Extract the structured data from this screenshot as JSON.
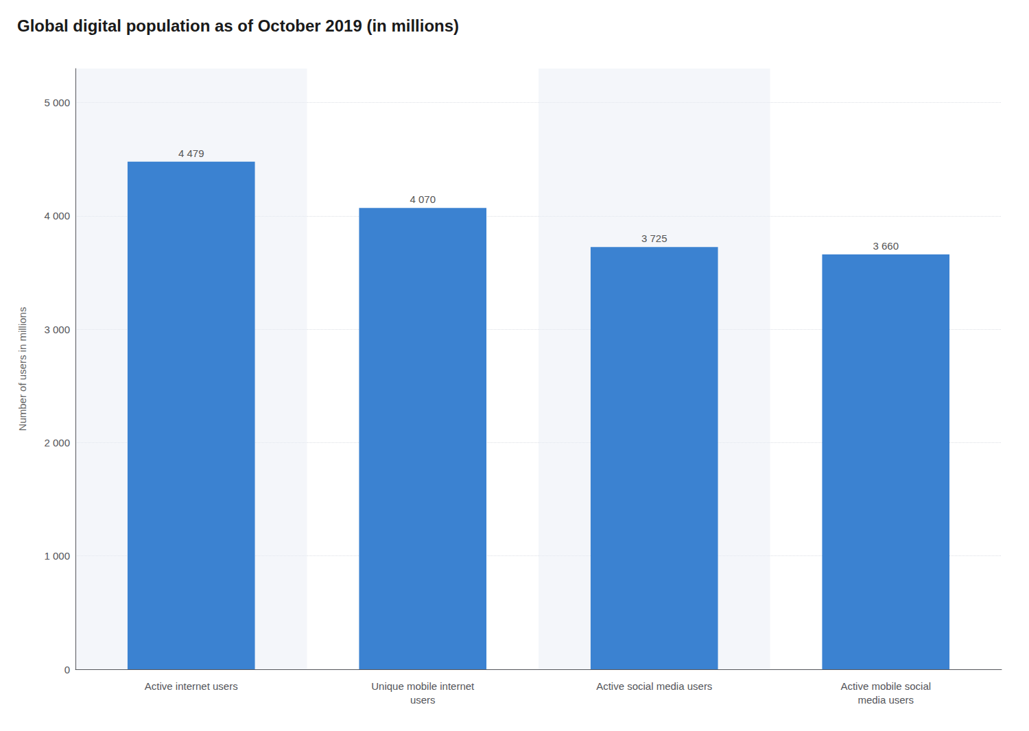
{
  "chart_data": {
    "type": "bar",
    "title": "Global digital population as of October 2019 (in millions)",
    "categories": [
      "Active internet users",
      "Unique mobile internet\nusers",
      "Active social media users",
      "Active mobile social\nmedia users"
    ],
    "values": [
      4479,
      4070,
      3725,
      3660
    ],
    "value_labels": [
      "4 479",
      "4 070",
      "3 725",
      "3 660"
    ],
    "data_labels": true,
    "color": "#3b82d1",
    "ylabel": "Number of users in millions",
    "ylim": [
      0,
      5300
    ],
    "yticks": [
      0,
      {
        "value": 1000,
        "label": "1 000"
      },
      {
        "value": 2000,
        "label": "2 000"
      },
      {
        "value": 3000,
        "label": "3 000"
      },
      {
        "value": 4000,
        "label": "4 000"
      },
      {
        "value": 5000,
        "label": "5 000"
      }
    ],
    "grid": true
  }
}
